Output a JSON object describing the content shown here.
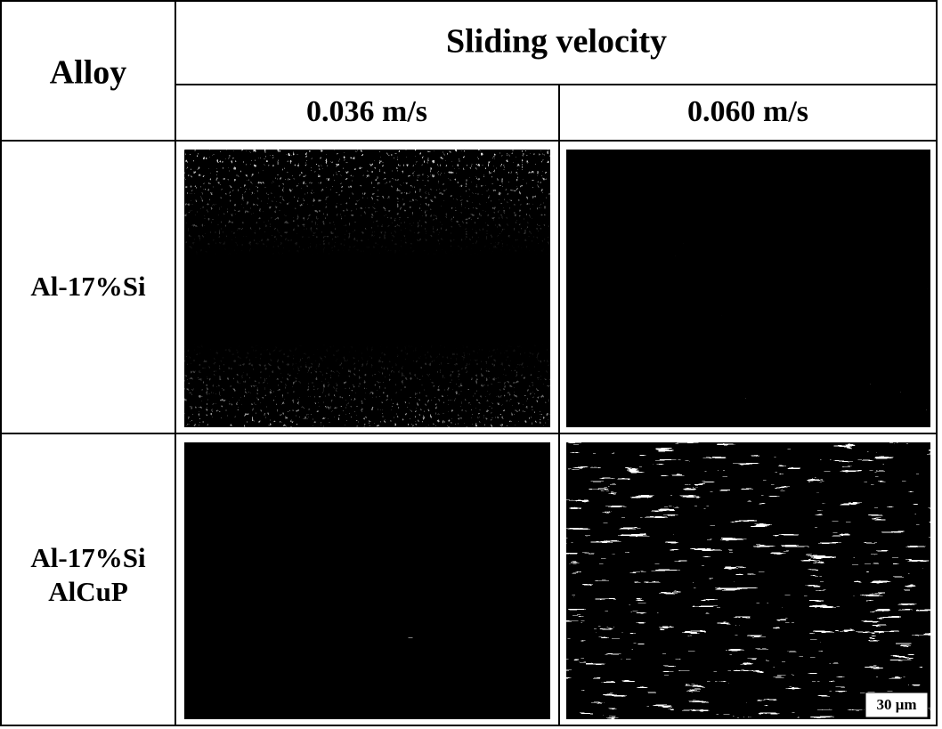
{
  "table": {
    "header": {
      "row_label": "Alloy",
      "group": "Sliding velocity",
      "columns": [
        "0.036 m/s",
        "0.060 m/s"
      ]
    },
    "rows": [
      {
        "label": [
          "Al-17%Si"
        ]
      },
      {
        "label": [
          "Al-17%Si",
          "AlCuP"
        ]
      }
    ]
  },
  "scale_bar": "30 μm"
}
